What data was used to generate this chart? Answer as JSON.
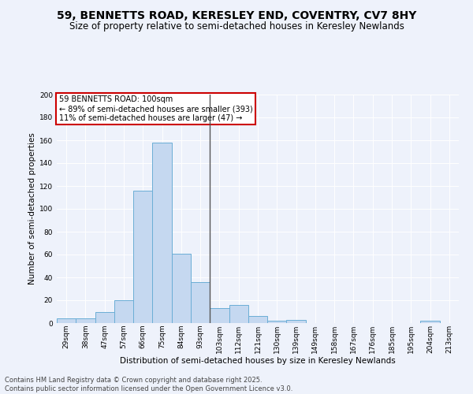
{
  "title": "59, BENNETTS ROAD, KERESLEY END, COVENTRY, CV7 8HY",
  "subtitle": "Size of property relative to semi-detached houses in Keresley Newlands",
  "xlabel": "Distribution of semi-detached houses by size in Keresley Newlands",
  "ylabel": "Number of semi-detached properties",
  "categories": [
    "29sqm",
    "38sqm",
    "47sqm",
    "57sqm",
    "66sqm",
    "75sqm",
    "84sqm",
    "93sqm",
    "103sqm",
    "112sqm",
    "121sqm",
    "130sqm",
    "139sqm",
    "149sqm",
    "158sqm",
    "167sqm",
    "176sqm",
    "185sqm",
    "195sqm",
    "204sqm",
    "213sqm"
  ],
  "values": [
    4,
    4,
    10,
    20,
    116,
    158,
    61,
    36,
    13,
    16,
    6,
    2,
    3,
    0,
    0,
    0,
    0,
    0,
    0,
    2,
    0
  ],
  "bar_color": "#c5d8f0",
  "bar_edge_color": "#6baed6",
  "vline_x_index": 8,
  "annotation_title": "59 BENNETTS ROAD: 100sqm",
  "annotation_line1": "← 89% of semi-detached houses are smaller (393)",
  "annotation_line2": "11% of semi-detached houses are larger (47) →",
  "annotation_box_color": "#ffffff",
  "annotation_box_edge_color": "#cc0000",
  "ylim": [
    0,
    200
  ],
  "yticks": [
    0,
    20,
    40,
    60,
    80,
    100,
    120,
    140,
    160,
    180,
    200
  ],
  "footnote": "Contains HM Land Registry data © Crown copyright and database right 2025.\nContains public sector information licensed under the Open Government Licence v3.0.",
  "bg_color": "#eef2fb",
  "title_fontsize": 10,
  "subtitle_fontsize": 8.5,
  "axis_label_fontsize": 7.5,
  "tick_fontsize": 6.5,
  "footnote_fontsize": 6.0
}
